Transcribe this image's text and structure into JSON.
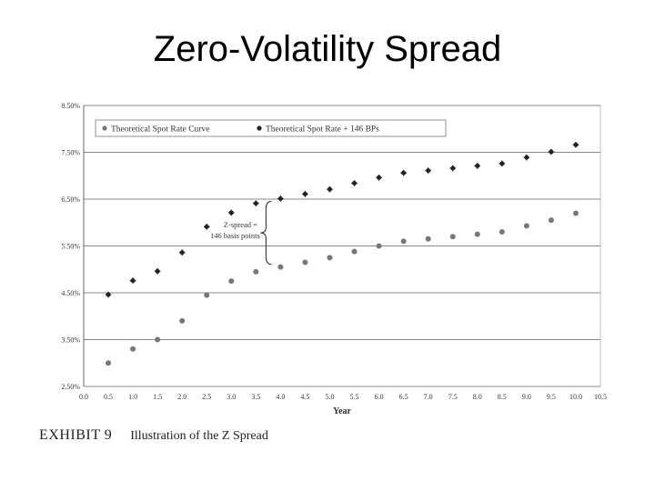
{
  "slide": {
    "title": "Zero-Volatility Spread"
  },
  "exhibit": {
    "number": "EXHIBIT 9",
    "caption": "Illustration of the Z Spread"
  },
  "colors": {
    "series1": "#777777",
    "series2": "#222222",
    "gridline": "#888888"
  },
  "chart_data": {
    "type": "scatter",
    "xlabel": "Year",
    "ylabel": "",
    "xlim": [
      0.0,
      10.5
    ],
    "ylim": [
      2.5,
      8.5
    ],
    "xticks": [
      "0.0",
      "0.5",
      "1.0",
      "1.5",
      "2.0",
      "2.5",
      "3.0",
      "3.5",
      "4.0",
      "4.5",
      "5.0",
      "5.5",
      "6.0",
      "6.5",
      "7.0",
      "7.5",
      "8.0",
      "8.5",
      "9.0",
      "9.5",
      "10.0",
      "10.5"
    ],
    "yticks": [
      "2.50%",
      "3.50%",
      "4.50%",
      "5.50%",
      "6.50%",
      "7.50%",
      "8.50%"
    ],
    "grid": true,
    "legend_position": "top",
    "x": [
      0.5,
      1.0,
      1.5,
      2.0,
      2.5,
      3.0,
      3.5,
      4.0,
      4.5,
      5.0,
      5.5,
      6.0,
      6.5,
      7.0,
      7.5,
      8.0,
      8.5,
      9.0,
      9.5,
      10.0
    ],
    "series": [
      {
        "name": "Theoretical Spot Rate Curve",
        "values": [
          3.0,
          3.3,
          3.5,
          3.9,
          4.45,
          4.75,
          4.95,
          5.05,
          5.15,
          5.25,
          5.38,
          5.5,
          5.6,
          5.65,
          5.7,
          5.75,
          5.8,
          5.93,
          6.05,
          6.2
        ]
      },
      {
        "name": "Theoretical Spot Rate + 146 BPs",
        "values": [
          4.46,
          4.76,
          4.96,
          5.36,
          5.91,
          6.21,
          6.41,
          6.51,
          6.61,
          6.71,
          6.84,
          6.96,
          7.06,
          7.11,
          7.16,
          7.21,
          7.26,
          7.39,
          7.51,
          7.66
        ]
      }
    ],
    "annotation": {
      "line1": "Z-spread =",
      "line2": "146 basis points",
      "x": 4.0,
      "y_low": 5.05,
      "y_high": 6.51
    }
  }
}
